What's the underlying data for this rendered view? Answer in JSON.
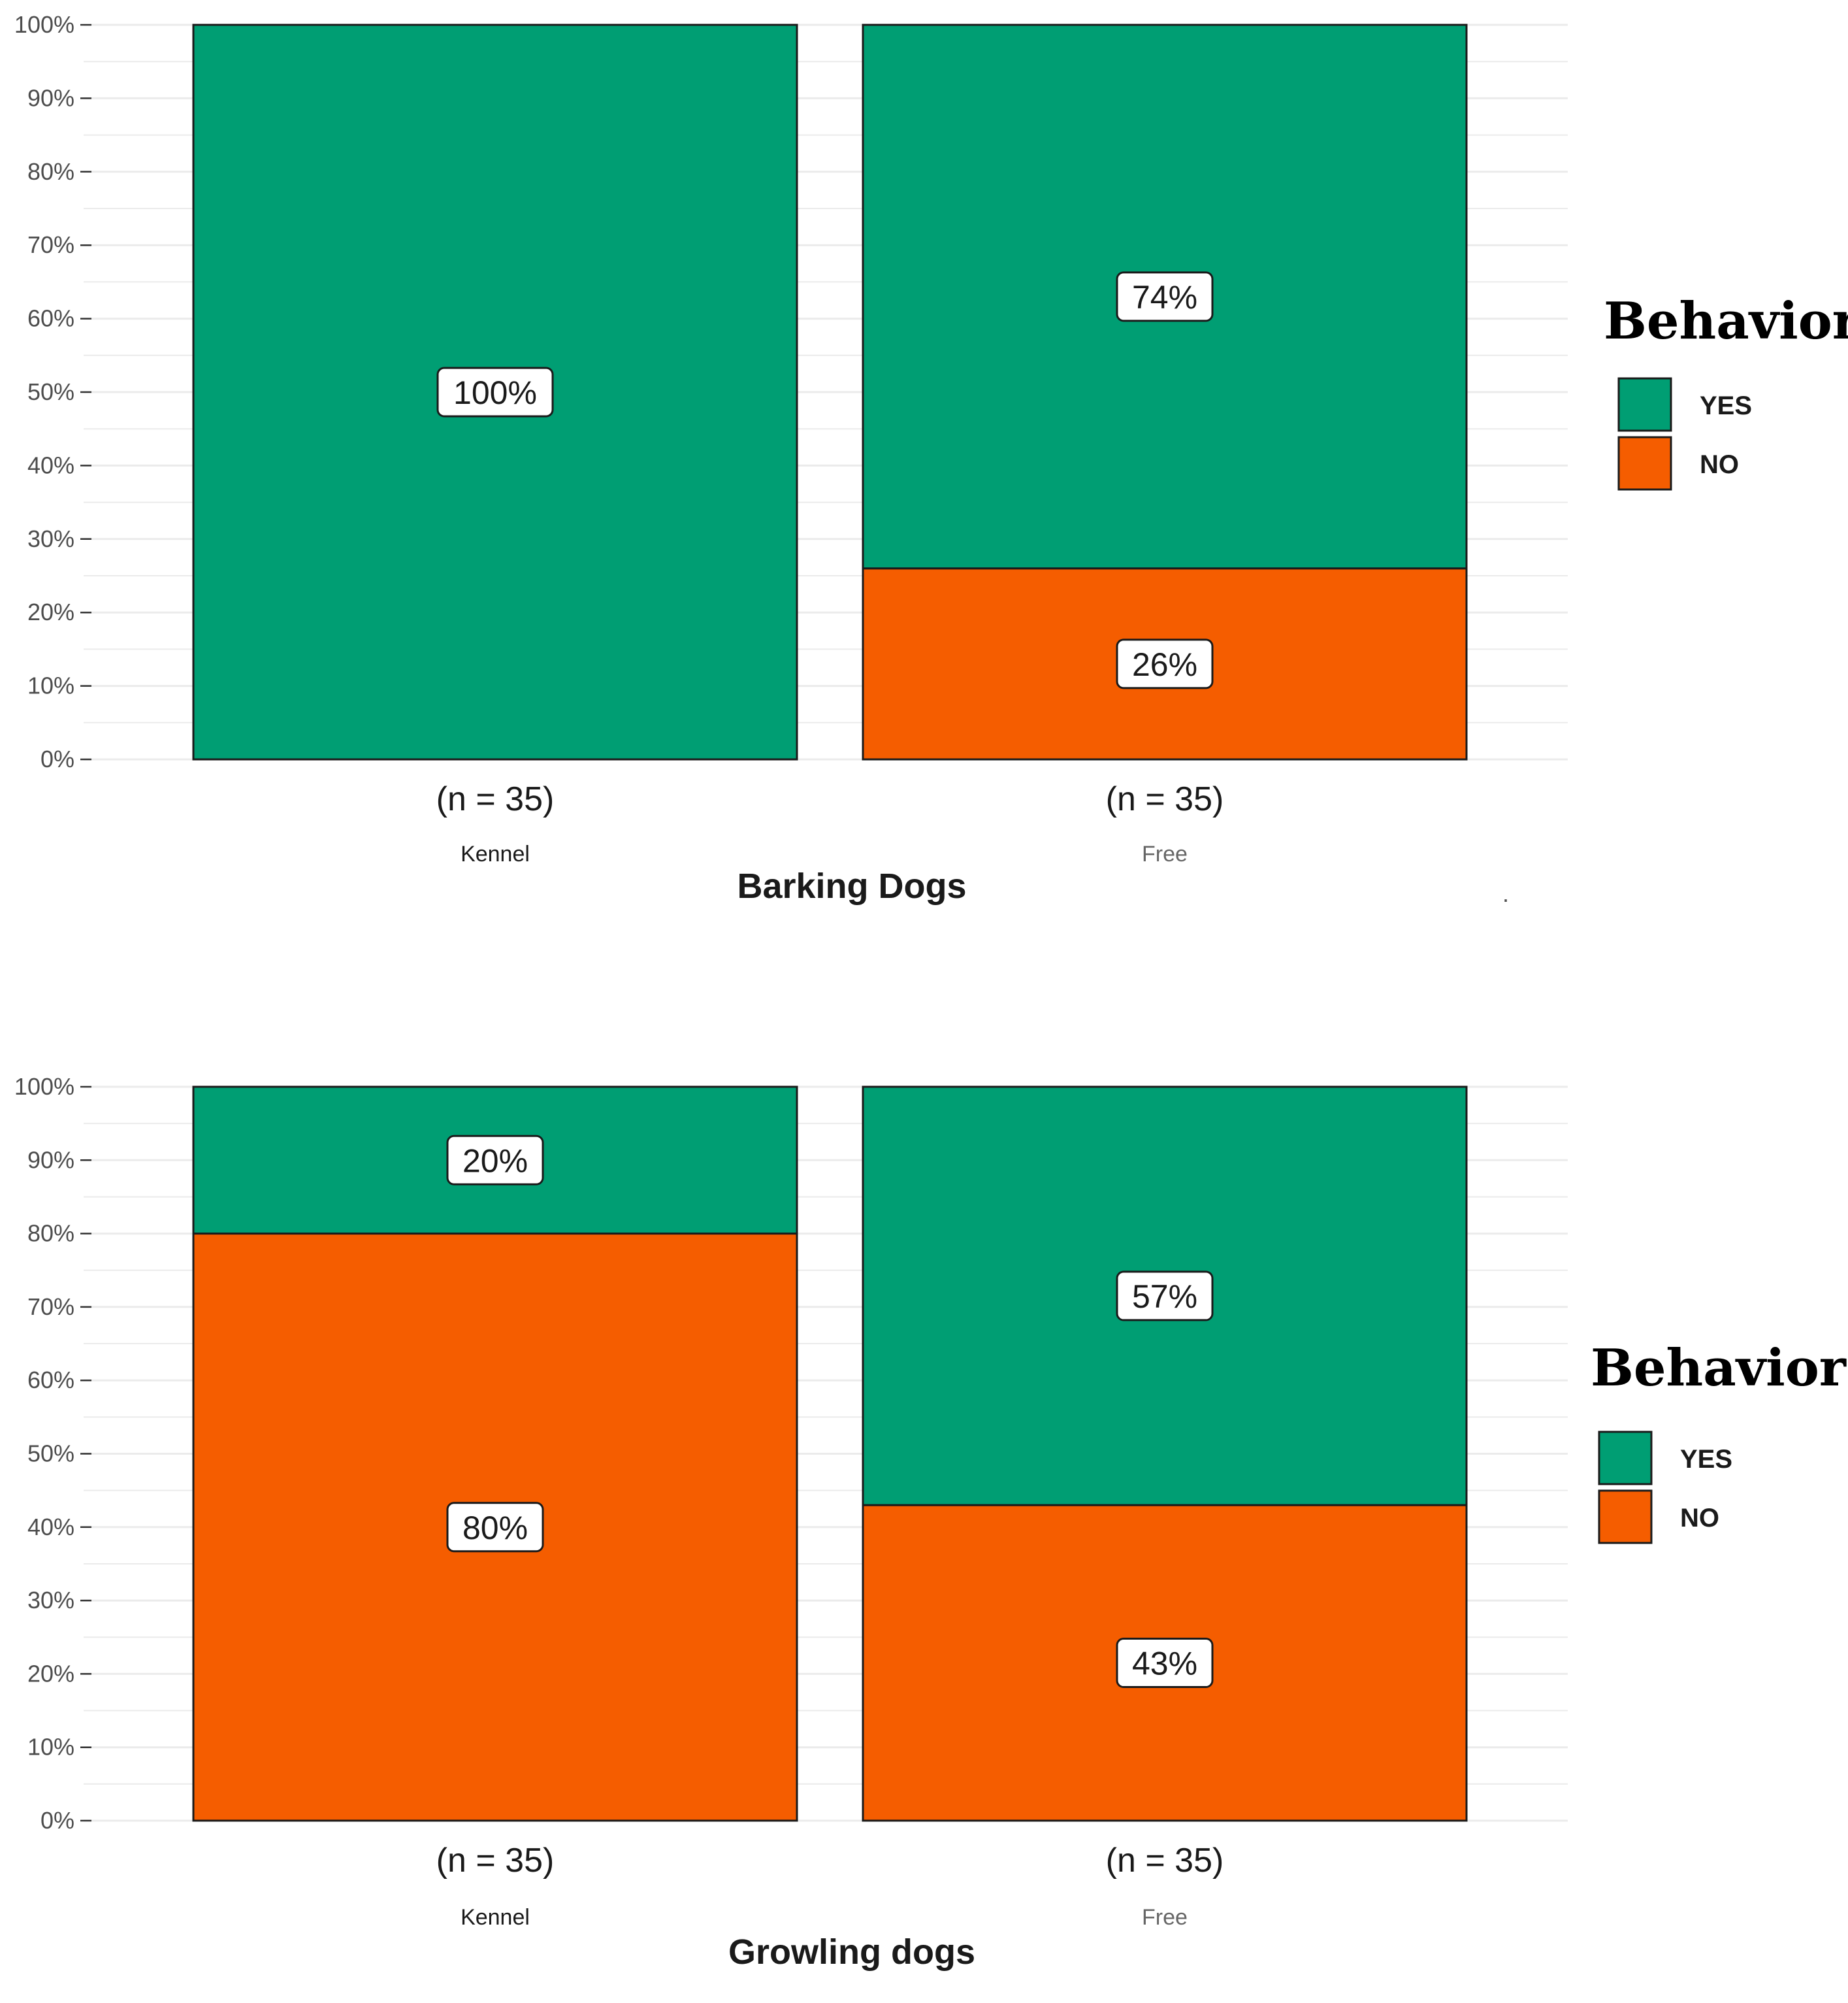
{
  "chart_data": [
    {
      "type": "bar",
      "stacked": true,
      "title": "",
      "xlabel": "Barking Dogs",
      "ylabel": "",
      "ylim": [
        0,
        100
      ],
      "yticks": [
        "0%",
        "10%",
        "20%",
        "30%",
        "40%",
        "50%",
        "60%",
        "70%",
        "80%",
        "90%",
        "100%"
      ],
      "categories": [
        "Kennel",
        "Free"
      ],
      "sample_sizes": [
        "(n = 35)",
        "(n = 35)"
      ],
      "series": [
        {
          "name": "YES",
          "values": [
            100,
            74
          ],
          "labels": [
            "100%",
            "74%"
          ]
        },
        {
          "name": "NO",
          "values": [
            0,
            26
          ],
          "labels": [
            "",
            "26%"
          ]
        }
      ],
      "legend": {
        "title": "Behavior",
        "entries": [
          "YES",
          "NO"
        ],
        "position": "right"
      },
      "grid": true,
      "annotation": "."
    },
    {
      "type": "bar",
      "stacked": true,
      "title": "",
      "xlabel": "Growling dogs",
      "ylabel": "",
      "ylim": [
        0,
        100
      ],
      "yticks": [
        "0%",
        "10%",
        "20%",
        "30%",
        "40%",
        "50%",
        "60%",
        "70%",
        "80%",
        "90%",
        "100%"
      ],
      "categories": [
        "Kennel",
        "Free"
      ],
      "sample_sizes": [
        "(n = 35)",
        "(n = 35)"
      ],
      "series": [
        {
          "name": "YES",
          "values": [
            20,
            57
          ],
          "labels": [
            "20%",
            "57%"
          ]
        },
        {
          "name": "NO",
          "values": [
            80,
            43
          ],
          "labels": [
            "80%",
            "43%"
          ]
        }
      ],
      "legend": {
        "title": "Behavior",
        "entries": [
          "YES",
          "NO"
        ],
        "position": "right"
      },
      "grid": true
    }
  ],
  "colors": {
    "YES": "#009e73",
    "NO": "#f55d00",
    "grid": "#ebebeb",
    "axis_text": "#4d4d4d",
    "kennel_label": "#1a1a1a",
    "free_label": "#666666"
  }
}
